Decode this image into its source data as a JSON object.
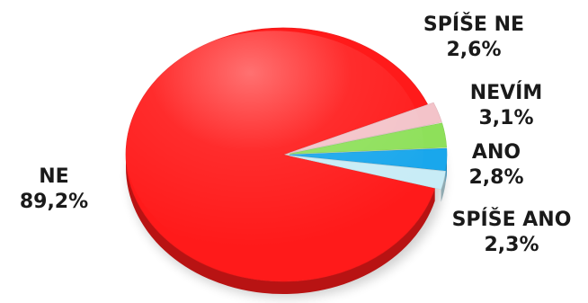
{
  "chart_data": {
    "type": "pie",
    "title": "",
    "slices": [
      {
        "label": "NE",
        "value": 89.2,
        "value_text": "89,2%",
        "color": "#ff1a1a"
      },
      {
        "label": "SPÍŠE ANO",
        "value": 2.3,
        "value_text": "2,3%",
        "color": "#c8ecf6"
      },
      {
        "label": "ANO",
        "value": 2.8,
        "value_text": "2,8%",
        "color": "#19a7ec"
      },
      {
        "label": "NEVÍM",
        "value": 3.1,
        "value_text": "3,1%",
        "color": "#8ee05a"
      },
      {
        "label": "SPÍŠE NE",
        "value": 2.6,
        "value_text": "2,6%",
        "color": "#f3c3c9"
      }
    ],
    "legend": "none",
    "style": "3d-tilted"
  }
}
